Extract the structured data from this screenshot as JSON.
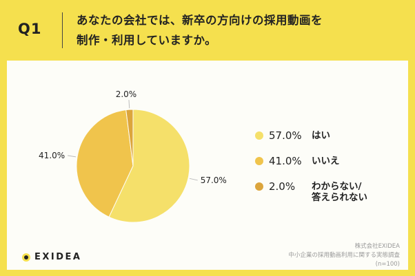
{
  "header": {
    "question_number": "Q1",
    "question_line1": "あなたの会社では、新卒の方向けの採用動画を",
    "question_line2": "制作・利用していますか。"
  },
  "chart_data": {
    "type": "pie",
    "categories": [
      "はい",
      "いいえ",
      "わからない/答えられない"
    ],
    "values": [
      57.0,
      41.0,
      2.0
    ],
    "value_labels": [
      "57.0%",
      "41.0%",
      "2.0%"
    ],
    "colors": [
      "#f5e06a",
      "#f0c44c",
      "#dca53c"
    ],
    "legend_placement": "right"
  },
  "legend": [
    {
      "value": "57.0%",
      "label_line1": "はい",
      "label_line2": "",
      "color": "#f5e06a"
    },
    {
      "value": "41.0%",
      "label_line1": "いいえ",
      "label_line2": "",
      "color": "#f0c44c"
    },
    {
      "value": "2.0%",
      "label_line1": "わからない/",
      "label_line2": "答えられない",
      "color": "#dca53c"
    }
  ],
  "footer": {
    "brand": "EXIDEA",
    "source_line1": "株式会社EXIDEA",
    "source_line2": "中小企業の採用動画利用に関する実態調査",
    "source_line3": "(n=100)"
  }
}
